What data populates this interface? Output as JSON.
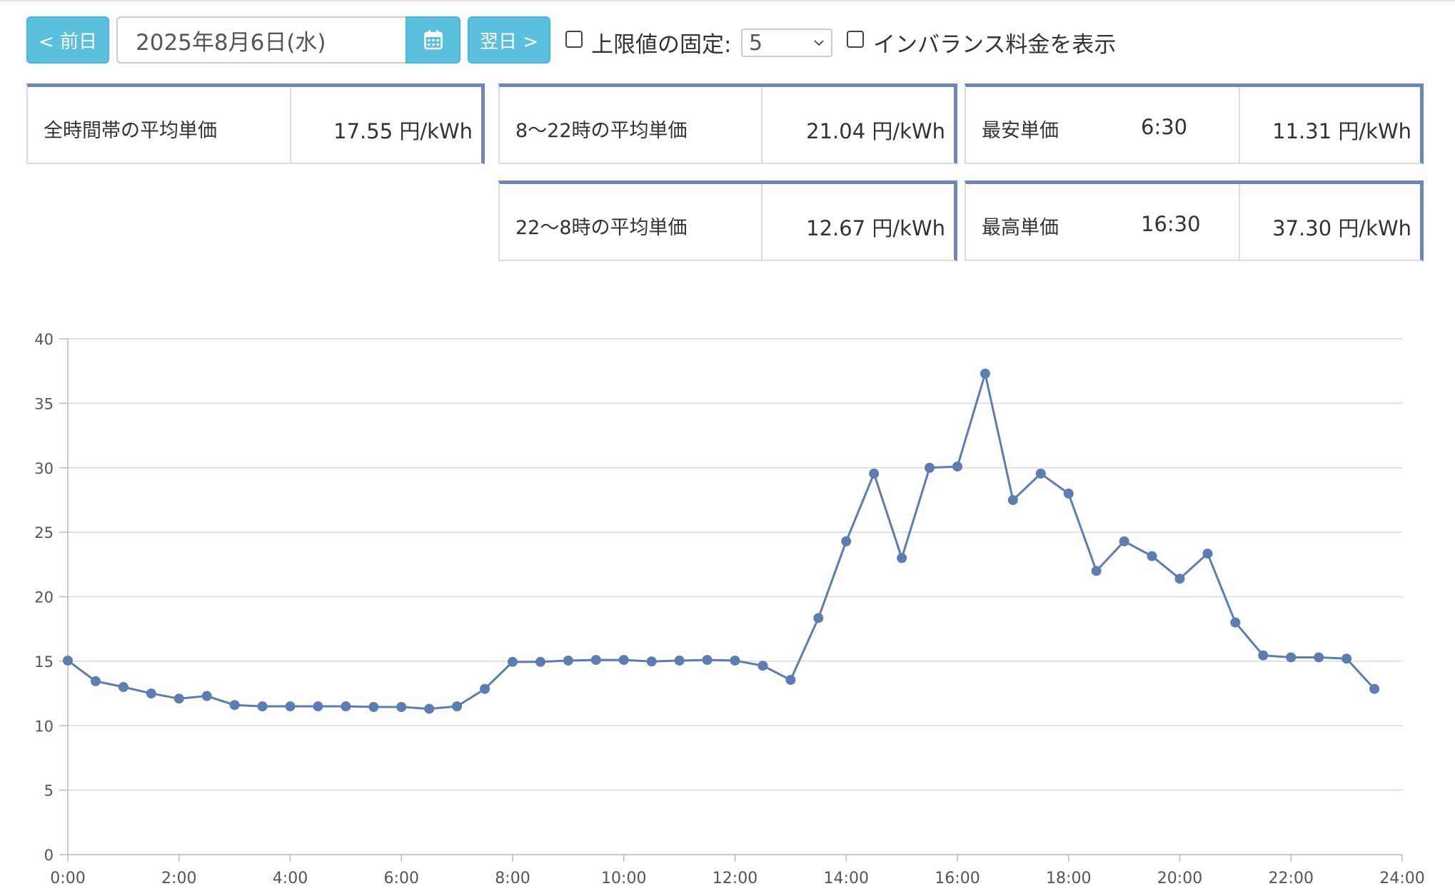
{
  "toolbar": {
    "prev_label": "< 前日",
    "date_value": "2025年8月6日(水)",
    "calendar_icon": "calendar-icon",
    "next_label": "翌日 >",
    "fix_limit_label": "上限値の固定:",
    "fix_limit_checked": false,
    "limit_value": "5",
    "imbalance_label": "インバランス料金を表示",
    "imbalance_checked": false
  },
  "stats": {
    "all_avg_label": "全時間帯の平均単価",
    "all_avg_value": "17.55 円/kWh",
    "day_avg_label": "8〜22時の平均単価",
    "day_avg_value": "21.04 円/kWh",
    "night_avg_label": "22〜8時の平均単価",
    "night_avg_value": "12.67 円/kWh",
    "min_label": "最安単価",
    "min_time": "6:30",
    "min_value": "11.31 円/kWh",
    "max_label": "最高単価",
    "max_time": "16:30",
    "max_value": "37.30 円/kWh"
  },
  "colors": {
    "accent": "#5bc0de",
    "series": "#5b7db1",
    "panel_border": "#6f85b8"
  },
  "chart_data": {
    "type": "line",
    "title": "",
    "xlabel": "",
    "ylabel": "",
    "ylim": [
      0,
      40
    ],
    "yticks": [
      0,
      5,
      10,
      15,
      20,
      25,
      30,
      35,
      40
    ],
    "xlim": [
      "0:00",
      "24:00"
    ],
    "xticks": [
      "0:00",
      "2:00",
      "4:00",
      "6:00",
      "8:00",
      "10:00",
      "12:00",
      "14:00",
      "16:00",
      "18:00",
      "20:00",
      "22:00",
      "24:00"
    ],
    "grid": true,
    "x": [
      "0:00",
      "0:30",
      "1:00",
      "1:30",
      "2:00",
      "2:30",
      "3:00",
      "3:30",
      "4:00",
      "4:30",
      "5:00",
      "5:30",
      "6:00",
      "6:30",
      "7:00",
      "7:30",
      "8:00",
      "8:30",
      "9:00",
      "9:30",
      "10:00",
      "10:30",
      "11:00",
      "11:30",
      "12:00",
      "12:30",
      "13:00",
      "13:30",
      "14:00",
      "14:30",
      "15:00",
      "15:30",
      "16:00",
      "16:30",
      "17:00",
      "17:30",
      "18:00",
      "18:30",
      "19:00",
      "19:30",
      "20:00",
      "20:30",
      "21:00",
      "21:30",
      "22:00",
      "22:30",
      "23:00",
      "23:30"
    ],
    "series": [
      {
        "values": [
          15.05,
          13.45,
          13.0,
          12.5,
          12.1,
          12.3,
          11.6,
          11.5,
          11.5,
          11.5,
          11.5,
          11.45,
          11.45,
          11.31,
          11.5,
          12.85,
          14.95,
          14.95,
          15.05,
          15.1,
          15.1,
          14.98,
          15.05,
          15.1,
          15.05,
          14.65,
          13.55,
          18.35,
          24.3,
          29.55,
          23.0,
          30.0,
          30.1,
          37.3,
          27.5,
          29.55,
          28.0,
          22.0,
          24.3,
          23.15,
          21.4,
          23.35,
          18.0,
          15.45,
          15.3,
          15.3,
          15.2,
          12.85
        ]
      }
    ]
  }
}
